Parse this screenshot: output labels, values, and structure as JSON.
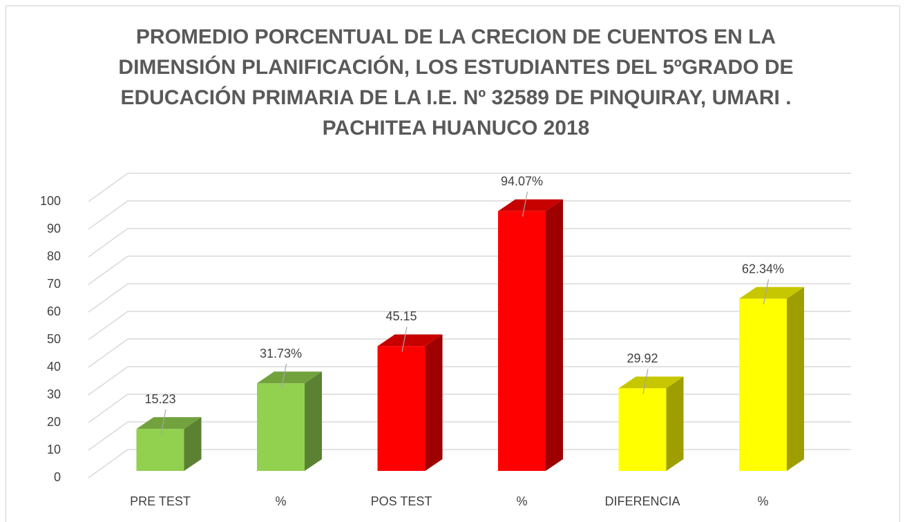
{
  "chart_data": {
    "type": "bar3d",
    "title": "PROMEDIO PORCENTUAL DE LA CRECION DE CUENTOS EN LA DIMENSIÓN PLANIFICACIÓN, LOS ESTUDIANTES DEL 5ºGRADO DE EDUCACIÓN PRIMARIA DE LA I.E. Nº 32589 DE PINQUIRAY, UMARI . PACHITEA HUANUCO 2018",
    "categories": [
      "PRE TEST",
      "%",
      "POS TEST",
      "%",
      "DIFERENCIA",
      "%"
    ],
    "values": [
      15.23,
      31.73,
      45.15,
      94.07,
      29.92,
      62.34
    ],
    "value_labels": [
      "15.23",
      "31.73%",
      "45.15",
      "94.07%",
      "29.92",
      "62.34%"
    ],
    "colors": [
      "#92d050",
      "#92d050",
      "#ff0000",
      "#ff0000",
      "#ffff00",
      "#ffff00"
    ],
    "ylim": [
      0,
      100
    ],
    "yticks": [
      0,
      10,
      20,
      30,
      40,
      50,
      60,
      70,
      80,
      90,
      100
    ],
    "grid": true
  }
}
